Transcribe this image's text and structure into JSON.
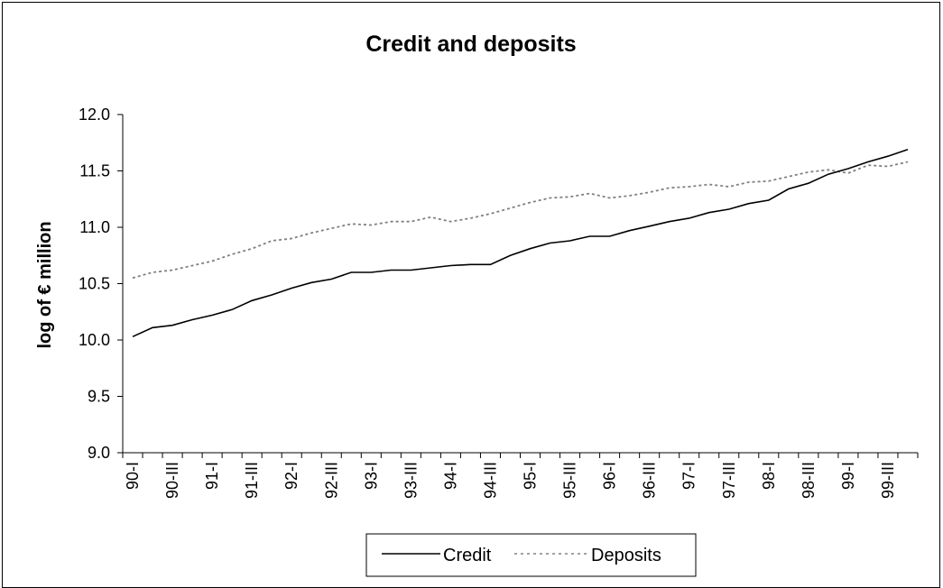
{
  "chart_data": {
    "type": "line",
    "title": "Credit and deposits",
    "xlabel": "",
    "ylabel": "log of € million",
    "ylim": [
      9.0,
      12.0
    ],
    "yticks": [
      "9.0",
      "9.5",
      "10.0",
      "10.5",
      "11.0",
      "11.5",
      "12.0"
    ],
    "x": [
      "90-I",
      "90-II",
      "90-III",
      "90-IV",
      "91-I",
      "91-II",
      "91-III",
      "91-IV",
      "92-I",
      "92-II",
      "92-III",
      "92-IV",
      "93-I",
      "93-II",
      "93-III",
      "93-IV",
      "94-I",
      "94-II",
      "94-III",
      "94-IV",
      "95-I",
      "95-II",
      "95-III",
      "95-IV",
      "96-I",
      "96-II",
      "96-III",
      "96-IV",
      "97-I",
      "97-II",
      "97-III",
      "97-IV",
      "98-I",
      "98-II",
      "98-III",
      "98-IV",
      "99-I",
      "99-II",
      "99-III",
      "99-IV"
    ],
    "xtick_labels": [
      "90-I",
      "90-III",
      "91-I",
      "91-III",
      "92-I",
      "92-III",
      "93-I",
      "93-III",
      "94-I",
      "94-III",
      "95-I",
      "95-III",
      "96-I",
      "96-III",
      "97-I",
      "97-III",
      "98-I",
      "98-III",
      "99-I",
      "99-III"
    ],
    "series": [
      {
        "name": "Credit",
        "style": "solid",
        "color": "#000000",
        "values": [
          10.03,
          10.11,
          10.13,
          10.18,
          10.22,
          10.27,
          10.35,
          10.4,
          10.46,
          10.51,
          10.54,
          10.6,
          10.6,
          10.62,
          10.62,
          10.64,
          10.66,
          10.67,
          10.67,
          10.75,
          10.81,
          10.86,
          10.88,
          10.92,
          10.92,
          10.97,
          11.01,
          11.05,
          11.08,
          11.13,
          11.16,
          11.21,
          11.24,
          11.34,
          11.39,
          11.47,
          11.52,
          11.58,
          11.63,
          11.69
        ]
      },
      {
        "name": "Deposits",
        "style": "dotted",
        "color": "#808080",
        "values": [
          10.55,
          10.6,
          10.62,
          10.66,
          10.7,
          10.76,
          10.81,
          10.88,
          10.9,
          10.95,
          10.99,
          11.03,
          11.02,
          11.05,
          11.05,
          11.09,
          11.05,
          11.08,
          11.12,
          11.17,
          11.22,
          11.26,
          11.27,
          11.3,
          11.26,
          11.28,
          11.31,
          11.35,
          11.36,
          11.38,
          11.36,
          11.4,
          11.41,
          11.45,
          11.49,
          11.51,
          11.48,
          11.55,
          11.54,
          11.58
        ]
      }
    ],
    "grid": false,
    "legend_position": "bottom"
  }
}
